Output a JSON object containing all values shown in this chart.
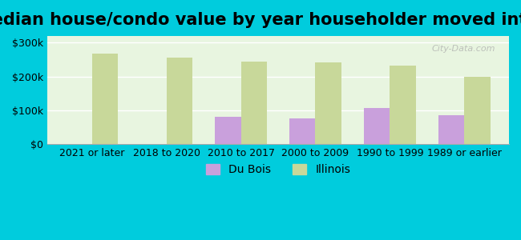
{
  "title": "Median house/condo value by year householder moved into unit",
  "categories": [
    "2021 or later",
    "2018 to 2020",
    "2010 to 2017",
    "2000 to 2009",
    "1990 to 1999",
    "1989 or earlier"
  ],
  "du_bois_values": [
    0,
    0,
    80000,
    75000,
    107000,
    85000
  ],
  "illinois_values": [
    268000,
    255000,
    245000,
    242000,
    233000,
    200000
  ],
  "du_bois_color": "#c9a0dc",
  "illinois_color": "#c8d89a",
  "background_outer": "#00ccdd",
  "background_inner": "#f0f8e8",
  "ylim": [
    0,
    320000
  ],
  "yticks": [
    0,
    100000,
    200000,
    300000
  ],
  "ytick_labels": [
    "$0",
    "$100k",
    "$200k",
    "$300k"
  ],
  "bar_width": 0.35,
  "legend_du_bois": "Du Bois",
  "legend_illinois": "Illinois",
  "watermark": "City-Data.com",
  "title_fontsize": 15,
  "tick_fontsize": 9,
  "legend_fontsize": 10
}
